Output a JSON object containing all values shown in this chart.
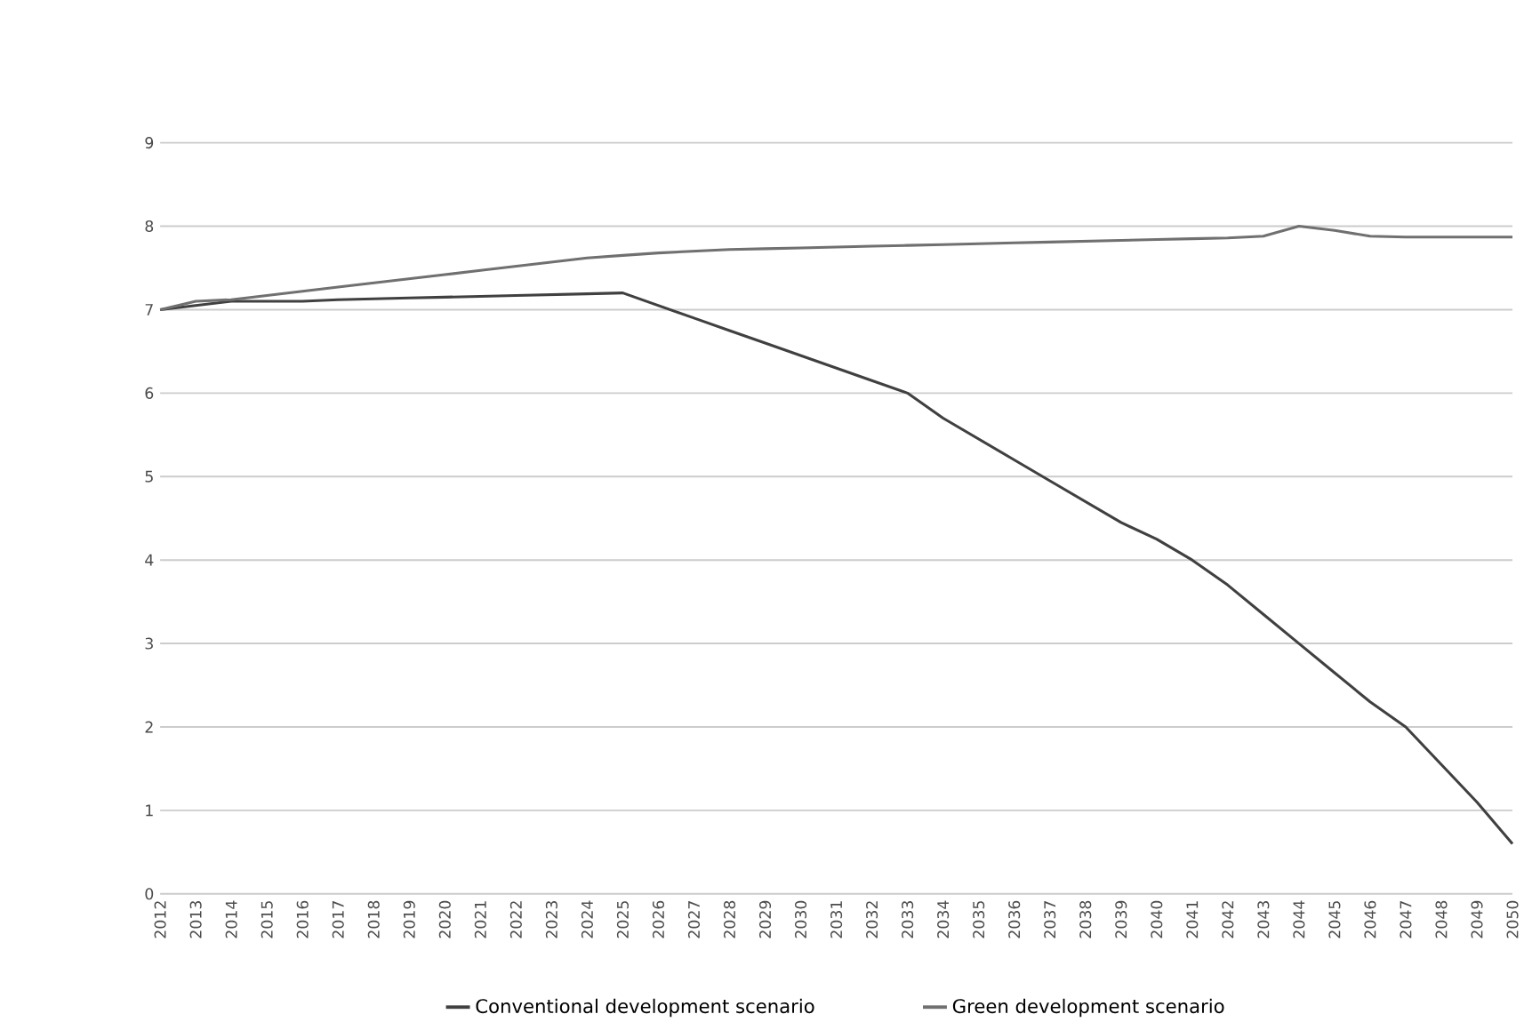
{
  "chart_data": {
    "type": "line",
    "categories": [
      "2012",
      "2013",
      "2014",
      "2015",
      "2016",
      "2017",
      "2018",
      "2019",
      "2020",
      "2021",
      "2022",
      "2023",
      "2024",
      "2025",
      "2026",
      "2027",
      "2028",
      "2029",
      "2030",
      "2031",
      "2032",
      "2033",
      "2034",
      "2035",
      "2036",
      "2037",
      "2038",
      "2039",
      "2040",
      "2041",
      "2042",
      "2043",
      "2044",
      "2045",
      "2046",
      "2047",
      "2048",
      "2049",
      "2050"
    ],
    "series": [
      {
        "name": "Conventional development scenario",
        "color": "#404040",
        "values": [
          7.0,
          7.05,
          7.1,
          7.1,
          7.1,
          7.12,
          7.13,
          7.14,
          7.15,
          7.16,
          7.17,
          7.18,
          7.19,
          7.2,
          7.05,
          6.9,
          6.75,
          6.6,
          6.45,
          6.3,
          6.15,
          6.0,
          5.7,
          5.45,
          5.2,
          4.95,
          4.7,
          4.45,
          4.25,
          4.0,
          3.7,
          3.35,
          3.0,
          2.65,
          2.3,
          2.0,
          1.55,
          1.1,
          0.6
        ]
      },
      {
        "name": "Green development scenario",
        "color": "#707070",
        "values": [
          7.0,
          7.1,
          7.12,
          7.17,
          7.22,
          7.27,
          7.32,
          7.37,
          7.42,
          7.47,
          7.52,
          7.57,
          7.62,
          7.65,
          7.68,
          7.7,
          7.72,
          7.73,
          7.74,
          7.75,
          7.76,
          7.77,
          7.78,
          7.79,
          7.8,
          7.81,
          7.82,
          7.83,
          7.84,
          7.85,
          7.86,
          7.88,
          8.0,
          7.95,
          7.88,
          7.87,
          7.87,
          7.87,
          7.87
        ]
      }
    ],
    "ylim": [
      0,
      9
    ],
    "yticks": [
      0,
      1,
      2,
      3,
      4,
      5,
      6,
      7,
      8,
      9
    ],
    "grid": "y",
    "legend": "bottom"
  }
}
